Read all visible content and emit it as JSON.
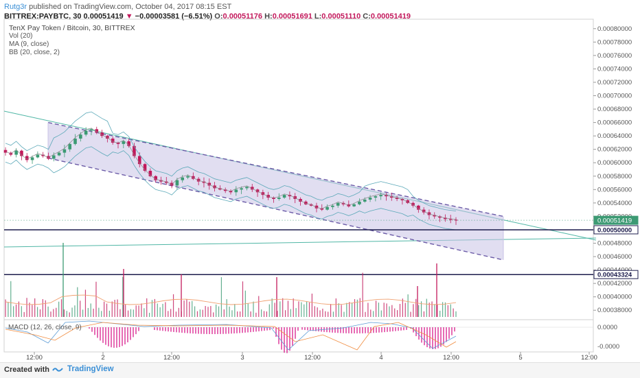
{
  "header": {
    "author": "Rutg3r",
    "published_text": "published on TradingView.com, October 04, 2017 08:15 EST",
    "symbol": "BITTREX:PAYBTC, 30",
    "last": "0.00051419",
    "down_glyph": "▼",
    "change": "−0.00003581 (−6.51%)",
    "ohlc": [
      {
        "k": "O:",
        "v": "0.00051176"
      },
      {
        "k": "H:",
        "v": "0.00051691"
      },
      {
        "k": "L:",
        "v": "0.00051110"
      },
      {
        "k": "C:",
        "v": "0.00051419"
      }
    ]
  },
  "legend": {
    "title": "TenX Pay Token / Bitcoin, 30, BITTREX",
    "vol": "Vol (20)",
    "ma": "MA (9, close)",
    "bb": "BB (20, close, 2)",
    "macd": "MACD (12, 26, close, 9)"
  },
  "footer": {
    "created_with": "Created with",
    "brand": "TradingView"
  },
  "colors": {
    "up": "#3c9a73",
    "down": "#c2185b",
    "channel_fill": "#c9c3e6",
    "channel_line": "#6a5aa6",
    "hline": "#1b1b4b",
    "trend": "#4fb6a5",
    "bb": "#5aa8b8",
    "vol_ma": "#f0a070",
    "macd_hist": "#d81b8c",
    "macd_line": "#5b9bd5",
    "signal_line": "#f08a3c"
  },
  "chart_data": {
    "type": "candlestick",
    "yaxis_labels": [
      "0.00080000",
      "0.00078000",
      "0.00076000",
      "0.00074000",
      "0.00072000",
      "0.00070000",
      "0.00068000",
      "0.00066000",
      "0.00064000",
      "0.00062000",
      "0.00060000",
      "0.00058000",
      "0.00056000",
      "0.00054000",
      "0.00052000",
      "0.00048000",
      "0.00046000",
      "0.00044000",
      "0.00042000",
      "0.00040000",
      "0.00038000"
    ],
    "xaxis_labels": [
      "12:00",
      "2",
      "12:00",
      "3",
      "12:00",
      "4",
      "12:00",
      "5",
      "12:00"
    ],
    "price_badges": [
      {
        "label": "0.00051419",
        "kind": "last"
      },
      {
        "label": "0.00050000",
        "kind": "level"
      },
      {
        "label": "0.00043324",
        "kind": "level"
      }
    ],
    "macd_axis_labels": [
      "0.0000",
      "-0.0000"
    ],
    "ylim": [
      0.00037,
      0.00081
    ],
    "horizontal_levels": [
      0.0005,
      0.00043324
    ],
    "channel": {
      "upper": [
        [
          0,
          0.00066
        ],
        [
          1,
          0.00052
        ]
      ],
      "lower": [
        [
          0,
          0.000607
        ],
        [
          1,
          0.000455
        ]
      ]
    },
    "close_path": [
      0.000615,
      0.000612,
      0.000618,
      0.00061,
      0.000604,
      0.000608,
      0.000612,
      0.00061,
      0.000606,
      0.000611,
      0.000615,
      0.00062,
      0.000628,
      0.000636,
      0.000642,
      0.000648,
      0.00065,
      0.000645,
      0.00064,
      0.000636,
      0.00063,
      0.000628,
      0.000632,
      0.000625,
      0.00061,
      0.000598,
      0.000588,
      0.00058,
      0.000574,
      0.000572,
      0.00057,
      0.000566,
      0.000574,
      0.000578,
      0.00058,
      0.000576,
      0.000572,
      0.00057,
      0.000566,
      0.000562,
      0.00056,
      0.000558,
      0.000556,
      0.00056,
      0.000562,
      0.000564,
      0.00056,
      0.000556,
      0.000552,
      0.000548,
      0.000546,
      0.000548,
      0.000552,
      0.00055,
      0.000546,
      0.000542,
      0.000538,
      0.000536,
      0.000532,
      0.00053,
      0.000534,
      0.000536,
      0.00054,
      0.000538,
      0.000535,
      0.000538,
      0.000542,
      0.000545,
      0.000548,
      0.00055,
      0.000552,
      0.00055,
      0.000548,
      0.000546,
      0.000544,
      0.00054,
      0.000536,
      0.00053,
      0.000526,
      0.000522,
      0.00052,
      0.000518,
      0.000516,
      0.000515,
      0.000514
    ]
  }
}
